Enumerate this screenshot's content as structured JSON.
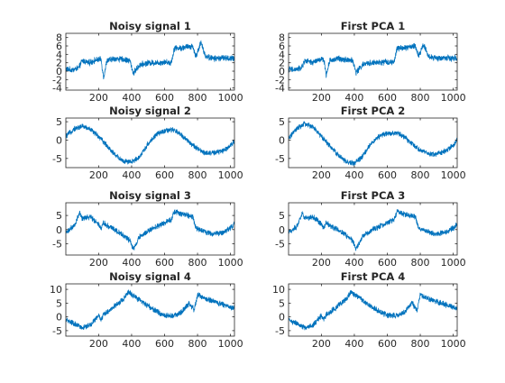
{
  "line_color": "#0072BD",
  "chart_data": [
    {
      "type": "line",
      "title": "Noisy signal 1",
      "xlim": [
        1,
        1024
      ],
      "ylim": [
        -4.5,
        9
      ],
      "xticks": [
        200,
        400,
        600,
        800,
        1000
      ],
      "yticks": [
        -4,
        -2,
        0,
        2,
        4,
        6,
        8
      ],
      "series": [
        {
          "x": [
            1,
            40,
            80,
            100,
            140,
            180,
            215,
            230,
            250,
            300,
            350,
            390,
            410,
            450,
            500,
            550,
            600,
            640,
            660,
            700,
            740,
            770,
            790,
            820,
            850,
            900,
            950,
            1000,
            1024
          ],
          "y": [
            0.5,
            0.3,
            0.8,
            2.5,
            2.0,
            2.6,
            2.8,
            -1.5,
            2.5,
            3.0,
            2.8,
            2.5,
            -0.5,
            1.5,
            2.0,
            2.0,
            2.2,
            2.0,
            5.5,
            5.5,
            5.8,
            6.0,
            3.5,
            6.8,
            3.5,
            3.0,
            3.2,
            3.0,
            3.0
          ]
        }
      ]
    },
    {
      "type": "line",
      "title": "First PCA 1",
      "xlim": [
        1,
        1024
      ],
      "ylim": [
        -4.5,
        9
      ],
      "xticks": [
        200,
        400,
        600,
        800,
        1000
      ],
      "yticks": [
        -4,
        -2,
        0,
        2,
        4,
        6,
        8
      ],
      "series": [
        {
          "x": [
            1,
            40,
            80,
            100,
            140,
            180,
            215,
            230,
            250,
            300,
            350,
            390,
            410,
            450,
            500,
            550,
            600,
            640,
            660,
            700,
            740,
            770,
            790,
            820,
            850,
            900,
            950,
            1000,
            1024
          ],
          "y": [
            0.5,
            0.3,
            0.8,
            2.5,
            2.0,
            2.6,
            2.8,
            -1.0,
            2.5,
            3.0,
            2.8,
            2.5,
            -0.3,
            1.5,
            2.0,
            2.0,
            2.2,
            2.0,
            5.5,
            5.5,
            5.8,
            6.0,
            3.5,
            6.5,
            3.5,
            3.0,
            3.2,
            3.0,
            3.0
          ]
        }
      ]
    },
    {
      "type": "line",
      "title": "Noisy signal 2",
      "xlim": [
        1,
        1024
      ],
      "ylim": [
        -7.5,
        6
      ],
      "xticks": [
        200,
        400,
        600,
        800,
        1000
      ],
      "yticks": [
        -5,
        0,
        5
      ],
      "series": [
        {
          "x": [
            1,
            50,
            100,
            150,
            200,
            250,
            300,
            350,
            400,
            450,
            500,
            550,
            600,
            650,
            700,
            750,
            800,
            850,
            900,
            950,
            1000,
            1024
          ],
          "y": [
            1.0,
            3.0,
            3.8,
            3.0,
            1.0,
            -1.5,
            -4.0,
            -5.8,
            -6.0,
            -4.5,
            -1.0,
            1.5,
            2.5,
            2.8,
            1.5,
            -0.5,
            -2.5,
            -3.5,
            -3.5,
            -3.0,
            -1.5,
            0.0
          ]
        }
      ]
    },
    {
      "type": "line",
      "title": "First PCA 2",
      "xlim": [
        1,
        1024
      ],
      "ylim": [
        -7.5,
        6
      ],
      "xticks": [
        200,
        400,
        600,
        800,
        1000
      ],
      "yticks": [
        -5,
        0,
        5
      ],
      "series": [
        {
          "x": [
            1,
            50,
            100,
            150,
            200,
            250,
            300,
            350,
            400,
            450,
            500,
            550,
            600,
            650,
            700,
            750,
            800,
            850,
            900,
            950,
            1000,
            1024
          ],
          "y": [
            0.5,
            3.0,
            4.5,
            3.5,
            1.0,
            -1.5,
            -4.0,
            -6.0,
            -6.3,
            -4.5,
            -1.0,
            1.0,
            1.8,
            2.0,
            1.0,
            -1.0,
            -2.8,
            -3.8,
            -3.8,
            -3.0,
            -1.5,
            0.0
          ]
        }
      ]
    },
    {
      "type": "line",
      "title": "Noisy signal 3",
      "xlim": [
        1,
        1024
      ],
      "ylim": [
        -9,
        9.5
      ],
      "xticks": [
        200,
        400,
        600,
        800,
        1000
      ],
      "yticks": [
        -5,
        0,
        5
      ],
      "series": [
        {
          "x": [
            1,
            50,
            85,
            100,
            150,
            200,
            215,
            230,
            250,
            300,
            350,
            390,
            410,
            450,
            500,
            550,
            600,
            640,
            660,
            700,
            740,
            770,
            790,
            820,
            850,
            900,
            950,
            1000,
            1024
          ],
          "y": [
            -1.0,
            1.0,
            6.0,
            4.0,
            4.5,
            2.0,
            0.5,
            2.5,
            1.5,
            0.0,
            -2.0,
            -4.0,
            -7.0,
            -2.5,
            -0.5,
            1.0,
            2.5,
            3.5,
            6.5,
            5.5,
            5.0,
            4.5,
            0.5,
            0.0,
            -1.0,
            -1.5,
            -1.0,
            0.5,
            2.0
          ]
        }
      ]
    },
    {
      "type": "line",
      "title": "First PCA 3",
      "xlim": [
        1,
        1024
      ],
      "ylim": [
        -9,
        9.5
      ],
      "xticks": [
        200,
        400,
        600,
        800,
        1000
      ],
      "yticks": [
        -5,
        0,
        5
      ],
      "series": [
        {
          "x": [
            1,
            50,
            85,
            100,
            150,
            200,
            215,
            230,
            250,
            300,
            350,
            390,
            410,
            450,
            500,
            550,
            600,
            640,
            660,
            700,
            740,
            770,
            790,
            820,
            850,
            900,
            950,
            1000,
            1024
          ],
          "y": [
            -1.0,
            1.0,
            6.0,
            4.0,
            4.5,
            2.0,
            0.5,
            2.5,
            1.5,
            0.0,
            -2.0,
            -4.0,
            -7.0,
            -2.5,
            -0.5,
            1.0,
            2.5,
            3.5,
            6.5,
            5.5,
            5.0,
            4.5,
            0.5,
            0.0,
            -1.0,
            -1.5,
            -1.0,
            0.5,
            2.0
          ]
        }
      ]
    },
    {
      "type": "line",
      "title": "Noisy signal 4",
      "xlim": [
        1,
        1024
      ],
      "ylim": [
        -7,
        12
      ],
      "xticks": [
        200,
        400,
        600,
        800,
        1000
      ],
      "yticks": [
        -5,
        0,
        5,
        10
      ],
      "series": [
        {
          "x": [
            1,
            50,
            100,
            150,
            200,
            215,
            230,
            250,
            300,
            350,
            380,
            400,
            420,
            450,
            500,
            550,
            600,
            650,
            700,
            750,
            780,
            800,
            850,
            900,
            950,
            1000,
            1024
          ],
          "y": [
            -1.0,
            -2.5,
            -4.0,
            -3.0,
            0.5,
            -1.0,
            1.0,
            1.5,
            4.0,
            6.5,
            9.0,
            8.0,
            7.5,
            6.0,
            4.0,
            2.0,
            0.5,
            0.5,
            1.5,
            5.0,
            2.5,
            8.0,
            6.5,
            5.5,
            4.5,
            3.5,
            3.0
          ]
        }
      ]
    },
    {
      "type": "line",
      "title": "First PCA 4",
      "xlim": [
        1,
        1024
      ],
      "ylim": [
        -7,
        12
      ],
      "xticks": [
        200,
        400,
        600,
        800,
        1000
      ],
      "yticks": [
        -5,
        0,
        5,
        10
      ],
      "series": [
        {
          "x": [
            1,
            50,
            100,
            150,
            200,
            215,
            230,
            250,
            300,
            350,
            380,
            400,
            420,
            450,
            500,
            550,
            600,
            650,
            700,
            750,
            780,
            800,
            850,
            900,
            950,
            1000,
            1024
          ],
          "y": [
            -1.0,
            -2.5,
            -4.0,
            -3.0,
            0.5,
            -1.0,
            1.0,
            1.5,
            4.0,
            6.5,
            9.0,
            8.0,
            7.5,
            6.0,
            4.0,
            2.0,
            0.5,
            0.5,
            1.5,
            5.0,
            2.5,
            8.0,
            6.5,
            5.5,
            4.5,
            3.5,
            3.0
          ]
        }
      ]
    }
  ]
}
